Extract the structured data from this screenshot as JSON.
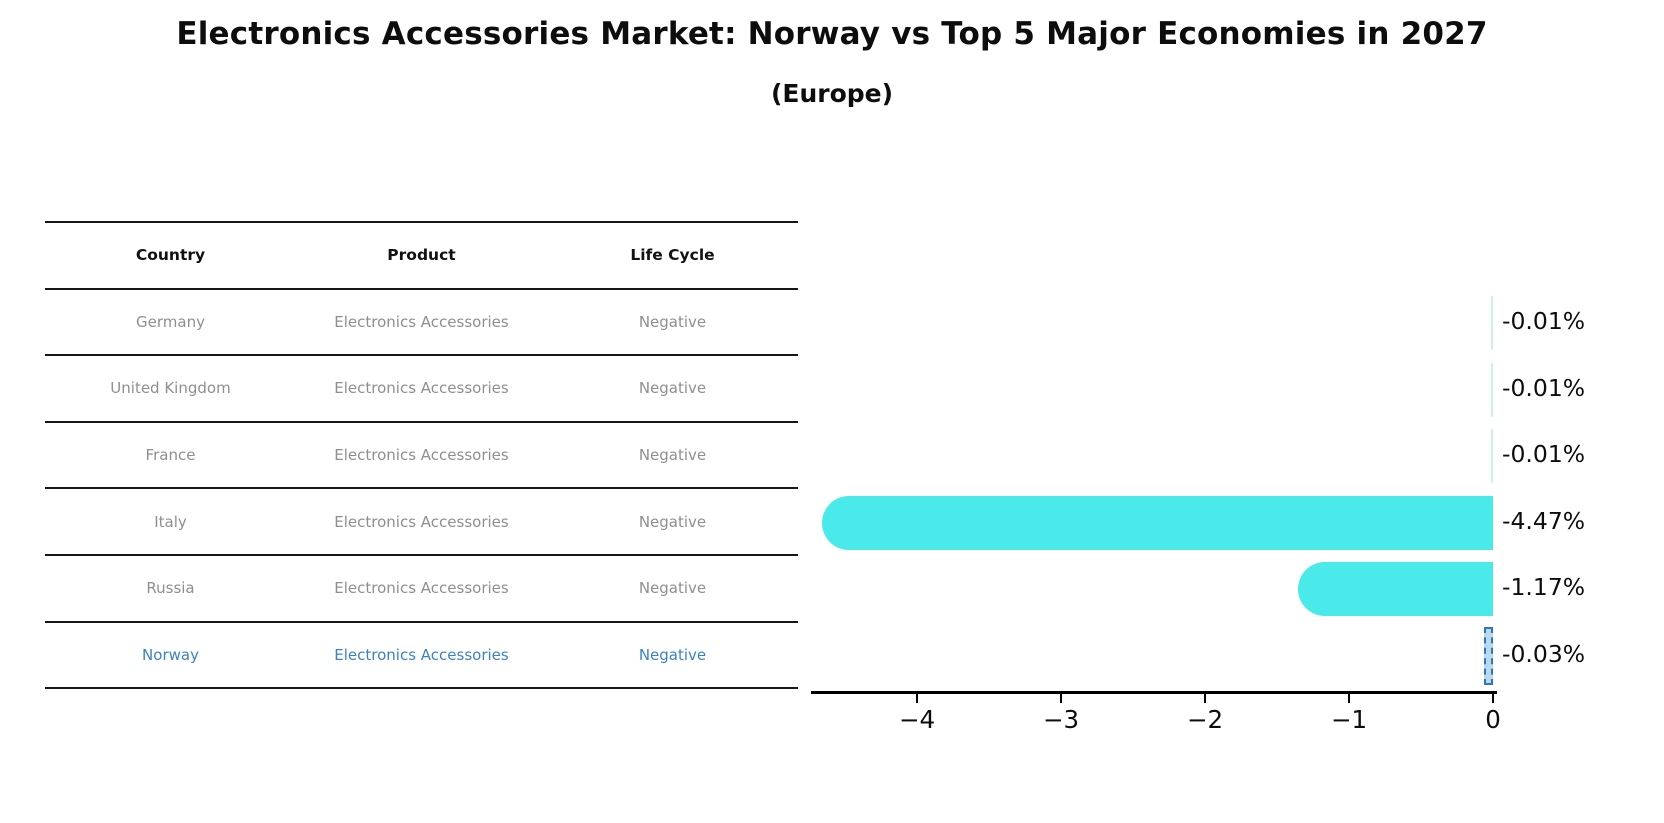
{
  "title": "Electronics Accessories Market: Norway vs Top 5 Major Economies in 2027",
  "subtitle": "(Europe)",
  "table": {
    "headers": [
      "Country",
      "Product",
      "Life Cycle"
    ],
    "rows": [
      {
        "country": "Germany",
        "product": "Electronics Accessories",
        "life_cycle": "Negative",
        "highlight": false
      },
      {
        "country": "United Kingdom",
        "product": "Electronics Accessories",
        "life_cycle": "Negative",
        "highlight": false
      },
      {
        "country": "France",
        "product": "Electronics Accessories",
        "life_cycle": "Negative",
        "highlight": false
      },
      {
        "country": "Italy",
        "product": "Electronics Accessories",
        "life_cycle": "Negative",
        "highlight": false
      },
      {
        "country": "Russia",
        "product": "Electronics Accessories",
        "life_cycle": "Negative",
        "highlight": false
      },
      {
        "country": "Norway",
        "product": "Electronics Accessories",
        "life_cycle": "Negative",
        "highlight": true
      }
    ]
  },
  "chart_data": {
    "type": "bar",
    "orientation": "horizontal",
    "title": "Electronics Accessories Market: Norway vs Top 5 Major Economies in 2027",
    "subtitle": "(Europe)",
    "categories": [
      "Germany",
      "United Kingdom",
      "France",
      "Italy",
      "Russia",
      "Norway"
    ],
    "values": [
      -0.01,
      -0.01,
      -0.01,
      -4.47,
      -1.17,
      -0.03
    ],
    "value_labels": [
      "-0.01%",
      "-0.01%",
      "-0.01%",
      "-4.47%",
      "-1.17%",
      "-0.03%"
    ],
    "unit": "percent",
    "xlim": [
      -4.75,
      0
    ],
    "x_ticks": [
      -4,
      -3,
      -2,
      -1,
      0
    ],
    "x_tick_labels": [
      "−4",
      "−3",
      "−2",
      "−1",
      "0"
    ],
    "highlight_category": "Norway",
    "grid": false,
    "legend": false,
    "colors": {
      "bar": "#4AE9EA",
      "bar_thin": "#CDEEE9",
      "highlight_border": "#2F76B5",
      "highlight_fill": "#B9D7EF",
      "highlight_text": "#3B82C4",
      "label_text": "#0D0D0D",
      "table_text": "#8F8F8F",
      "line": "#161616"
    }
  }
}
